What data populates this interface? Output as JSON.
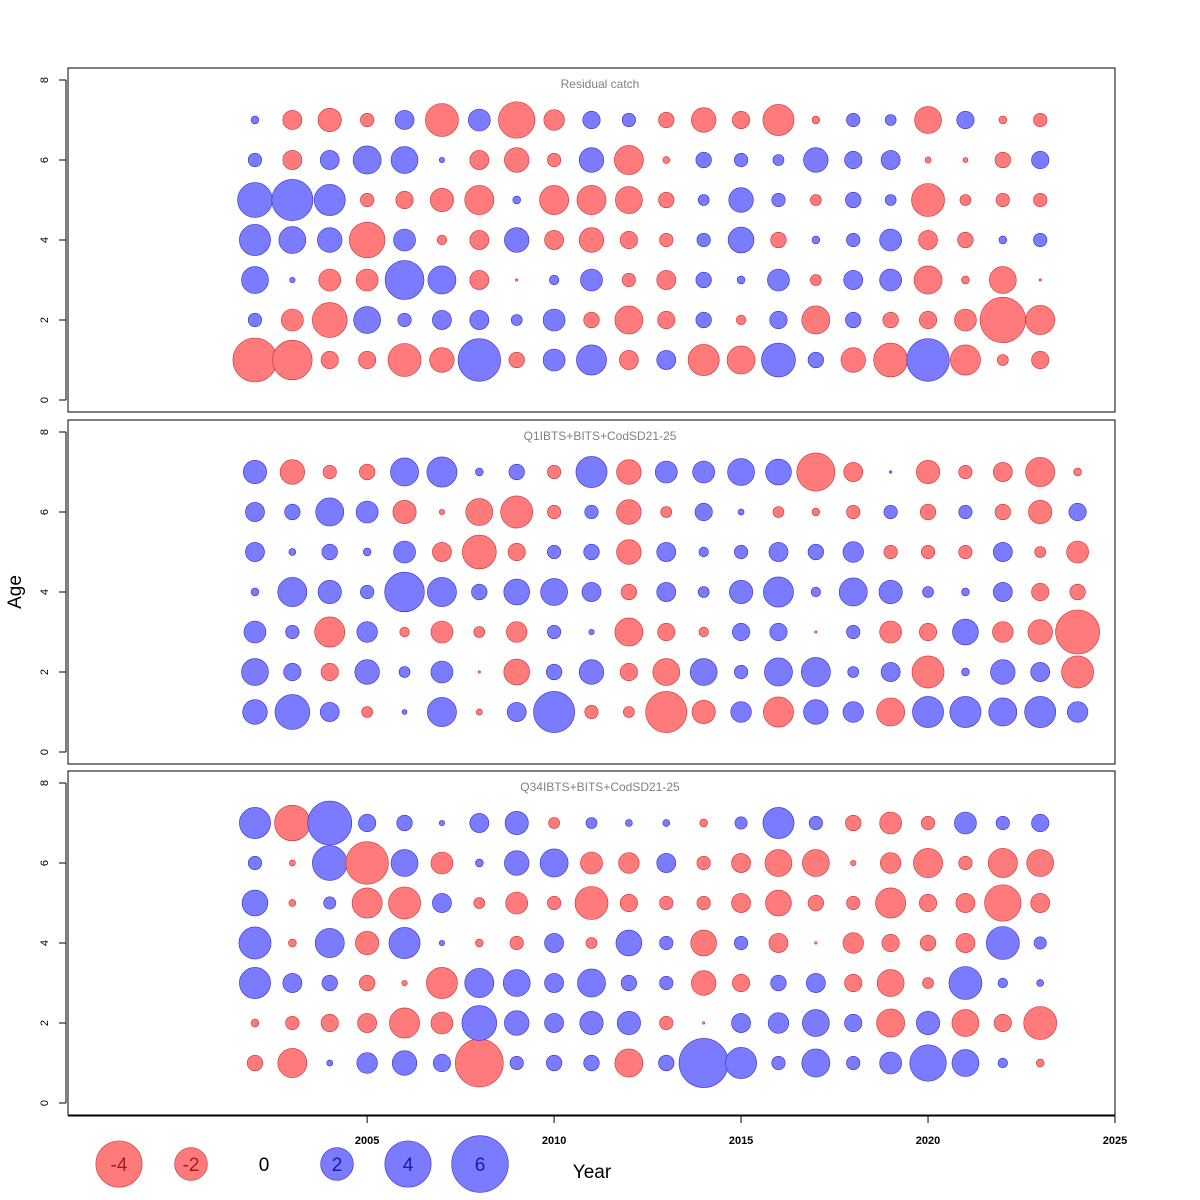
{
  "chart_data": {
    "type": "scatter",
    "subtype": "bubble",
    "xlabel": "Year",
    "ylabel": "Age",
    "xlim": [
      1997,
      2025
    ],
    "ylim": [
      0,
      8
    ],
    "x_ticks": [
      2005,
      2010,
      2015,
      2020,
      2025
    ],
    "y_ticks": [
      0,
      2,
      4,
      6,
      8
    ],
    "colors": {
      "positive": "#7b7bff",
      "negative": "#ff7b7b",
      "positive_edge": "#3030c8",
      "negative_edge": "#c83030",
      "label_positive": "#1a1aa8",
      "label_negative": "#a81a1a"
    },
    "legend": {
      "placement": "bottom-left",
      "values": [
        -4,
        -2,
        0,
        2,
        4,
        6
      ],
      "labels": [
        "-4",
        "-2",
        "0",
        "2",
        "4",
        "6"
      ]
    },
    "value_encoding": "bubble area proportional to |residual|; red = negative, blue = positive",
    "ages": [
      1,
      2,
      3,
      4,
      5,
      6,
      7
    ],
    "panels": [
      {
        "title": "Residual catch",
        "years": [
          2002,
          2003,
          2004,
          2005,
          2006,
          2007,
          2008,
          2009,
          2010,
          2011,
          2012,
          2013,
          2014,
          2015,
          2016,
          2017,
          2018,
          2019,
          2020,
          2021,
          2022,
          2023
        ],
        "residuals": {
          "1": [
            -3.2,
            -2.6,
            -0.5,
            -0.5,
            -1.8,
            -1.0,
            3.0,
            -0.4,
            0.8,
            1.5,
            -0.6,
            0.6,
            -1.6,
            -1.3,
            1.9,
            0.4,
            -1.0,
            -1.9,
            3.0,
            -1.5,
            -0.2,
            -0.5
          ],
          "2": [
            0.3,
            -0.8,
            -2.0,
            1.2,
            0.3,
            0.6,
            0.6,
            0.2,
            0.8,
            -0.4,
            -1.3,
            -0.5,
            0.4,
            -0.15,
            0.5,
            -1.3,
            0.4,
            -0.4,
            -0.5,
            -0.8,
            -3.4,
            -1.4
          ],
          "3": [
            1.2,
            0.05,
            -0.8,
            -0.8,
            2.5,
            1.3,
            -0.6,
            -0.01,
            0.15,
            0.8,
            -0.3,
            -0.6,
            0.4,
            0.1,
            0.8,
            -0.2,
            0.6,
            0.8,
            -1.3,
            -0.1,
            -1.2,
            -0.01
          ],
          "4": [
            1.6,
            1.2,
            1.0,
            -2.1,
            0.8,
            -0.15,
            -0.6,
            1.0,
            -0.6,
            -1.0,
            -0.5,
            -0.3,
            0.3,
            1.1,
            -0.4,
            0.1,
            0.3,
            0.8,
            -0.6,
            -0.4,
            0.1,
            0.3
          ],
          "5": [
            2.0,
            2.8,
            1.6,
            -0.3,
            -0.5,
            -0.9,
            -1.4,
            0.1,
            -1.4,
            -1.4,
            -1.2,
            -0.4,
            0.2,
            1.0,
            0.3,
            -0.2,
            0.4,
            0.2,
            -1.8,
            -0.2,
            -0.3,
            -0.3
          ],
          "6": [
            0.3,
            -0.6,
            0.6,
            1.3,
            1.2,
            0.05,
            -0.6,
            -1.0,
            -0.3,
            1.0,
            -1.4,
            -0.08,
            0.4,
            0.3,
            0.2,
            1.0,
            0.5,
            0.6,
            -0.06,
            -0.04,
            -0.4,
            0.5
          ],
          "7": [
            0.1,
            -0.6,
            -0.9,
            -0.3,
            0.6,
            -1.8,
            0.8,
            -2.2,
            -0.7,
            0.5,
            0.3,
            -0.4,
            -1.0,
            -0.5,
            -1.6,
            -0.1,
            0.3,
            0.2,
            -1.2,
            0.5,
            -0.1,
            -0.3
          ]
        }
      },
      {
        "title": "Q1IBTS+BITS+CodSD21-25",
        "years": [
          2002,
          2003,
          2004,
          2005,
          2006,
          2007,
          2008,
          2009,
          2010,
          2011,
          2012,
          2013,
          2014,
          2015,
          2016,
          2017,
          2018,
          2019,
          2020,
          2021,
          2022,
          2023,
          2024
        ],
        "residuals": {
          "1": [
            1.0,
            2.0,
            0.6,
            -0.2,
            0.04,
            1.4,
            -0.06,
            0.6,
            2.8,
            -0.3,
            -0.2,
            -2.8,
            -0.9,
            0.7,
            -1.5,
            1.0,
            0.7,
            -1.3,
            1.6,
            1.6,
            1.3,
            1.6,
            0.7
          ],
          "2": [
            1.2,
            0.5,
            -0.5,
            1.0,
            0.2,
            0.8,
            -0.01,
            -1.1,
            0.4,
            1.0,
            -0.5,
            -1.2,
            1.2,
            0.3,
            1.3,
            1.4,
            0.2,
            0.6,
            -1.7,
            0.1,
            1.0,
            0.6,
            -1.7
          ],
          "3": [
            0.8,
            0.3,
            -1.5,
            0.7,
            -0.15,
            -0.8,
            -0.2,
            -0.7,
            0.3,
            0.05,
            -1.3,
            -0.5,
            -0.15,
            0.5,
            0.5,
            -0.01,
            0.3,
            -0.8,
            -0.5,
            1.1,
            -0.7,
            -1.0,
            -3.2
          ],
          "4": [
            0.1,
            1.4,
            0.9,
            0.3,
            2.6,
            1.4,
            0.4,
            1.1,
            1.2,
            0.6,
            -0.4,
            0.6,
            0.2,
            0.9,
            1.5,
            0.15,
            1.3,
            0.9,
            0.2,
            0.1,
            0.6,
            -0.5,
            -0.4
          ],
          "5": [
            0.6,
            0.08,
            0.4,
            0.1,
            0.8,
            -0.6,
            -1.9,
            -0.5,
            0.3,
            0.4,
            -1.0,
            0.6,
            0.15,
            0.3,
            0.6,
            0.4,
            0.7,
            -0.3,
            -0.3,
            -0.3,
            0.6,
            -0.2,
            -0.8
          ],
          "6": [
            0.6,
            0.4,
            1.3,
            0.8,
            -0.9,
            -0.05,
            -1.2,
            -1.7,
            -0.3,
            0.3,
            -1.0,
            -0.2,
            0.5,
            0.06,
            -0.2,
            -0.1,
            -0.3,
            0.3,
            -0.4,
            0.3,
            -0.4,
            -0.9,
            0.5
          ],
          "7": [
            0.9,
            -1.0,
            -0.3,
            -0.4,
            1.3,
            1.5,
            0.1,
            0.4,
            -0.3,
            1.6,
            -1.0,
            0.8,
            0.8,
            1.2,
            1.1,
            -2.4,
            -0.6,
            0.01,
            -0.9,
            -0.3,
            -0.6,
            -1.4,
            -0.1
          ]
        }
      },
      {
        "title": "Q34IBTS+BITS+CodSD21-25",
        "years": [
          2002,
          2003,
          2004,
          2005,
          2006,
          2007,
          2008,
          2009,
          2010,
          2011,
          2012,
          2013,
          2014,
          2015,
          2016,
          2017,
          2018,
          2019,
          2020,
          2021,
          2022,
          2023
        ],
        "residuals": {
          "1": [
            -0.4,
            -1.4,
            0.06,
            0.7,
            1.0,
            0.5,
            -3.8,
            0.3,
            0.4,
            0.4,
            -1.3,
            0.4,
            4.0,
            1.6,
            0.3,
            1.3,
            0.3,
            0.8,
            2.2,
            1.2,
            0.15,
            -0.1
          ],
          "2": [
            -0.1,
            -0.3,
            -0.5,
            -0.6,
            -1.5,
            -0.8,
            2.0,
            1.0,
            0.6,
            0.9,
            0.9,
            -0.3,
            -0.01,
            0.6,
            0.7,
            1.2,
            0.5,
            -1.3,
            0.9,
            -1.2,
            -0.5,
            -1.8
          ],
          "3": [
            1.6,
            0.6,
            0.4,
            -0.4,
            -0.05,
            -1.6,
            1.4,
            1.2,
            0.6,
            1.3,
            0.4,
            0.3,
            -1.0,
            -0.5,
            0.4,
            0.6,
            -0.5,
            -1.2,
            -0.2,
            1.8,
            0.15,
            0.08
          ],
          "4": [
            1.7,
            -0.1,
            1.4,
            -0.9,
            1.6,
            0.05,
            -0.1,
            -0.3,
            0.6,
            -0.2,
            1.1,
            0.3,
            -1.1,
            0.3,
            -0.6,
            -0.01,
            -0.7,
            -0.5,
            -0.4,
            -0.6,
            1.8,
            0.25
          ],
          "5": [
            1.1,
            -0.08,
            0.25,
            -1.5,
            -1.7,
            0.6,
            -0.2,
            -0.8,
            -0.3,
            -1.8,
            -0.5,
            -0.3,
            -0.3,
            -0.6,
            -1.1,
            -0.4,
            -0.3,
            -1.5,
            -0.5,
            -0.6,
            -2.2,
            -0.6
          ],
          "6": [
            0.3,
            -0.06,
            2.0,
            -3.0,
            1.2,
            -0.8,
            0.1,
            1.0,
            1.3,
            -0.8,
            -0.7,
            0.6,
            -0.3,
            -0.6,
            -1.2,
            -1.2,
            -0.05,
            -0.7,
            -1.4,
            -0.3,
            -1.4,
            -1.2
          ],
          "7": [
            1.6,
            -2.1,
            3.2,
            0.5,
            0.4,
            0.05,
            0.6,
            0.9,
            -0.2,
            0.2,
            0.08,
            0.08,
            -0.1,
            0.25,
            1.6,
            0.3,
            -0.4,
            -0.8,
            -0.3,
            0.8,
            0.3,
            0.5
          ]
        }
      }
    ]
  }
}
